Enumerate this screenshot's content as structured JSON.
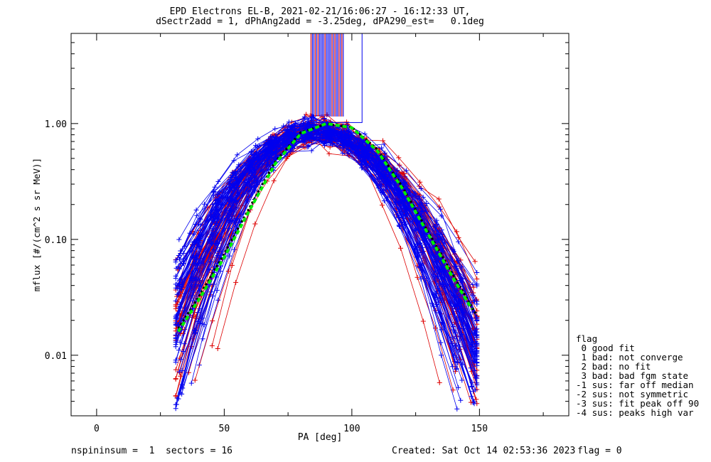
{
  "title_line1": "EPD Electrons EL-B, 2021-02-21/16:06:27 - 16:12:33 UT,",
  "title_line2": "dSectr2add = 1, dPhAng2add = -3.25deg, dPA290_est=   0.1deg",
  "footer": {
    "left": "nspininsum =  1  sectors = 16",
    "created": "Created: Sat Oct 14 02:53:36 2023",
    "flag": "flag = 0"
  },
  "flag_legend": {
    "title": "flag",
    "items": [
      " 0 good fit",
      " 1 bad: not converge",
      " 2 bad: no fit",
      " 3 bad: bad fgm state",
      "-1 sus: far off median",
      "-2 sus: not symmetric",
      "-3 sus: fit peak off 90",
      "-4 sus: peaks high var"
    ]
  },
  "colors": {
    "red": "#dd0000",
    "blue": "#0000ee",
    "fit_green": "#00ee00",
    "median_black": "#000000"
  },
  "chart_data": {
    "type": "line",
    "xlabel": "PA [deg]",
    "ylabel": "mflux [#/(cm^2 s sr MeV)]",
    "xlim": [
      -10,
      185
    ],
    "ylim": [
      0.003,
      6.0
    ],
    "yscale": "log",
    "x_ticks": [
      "0",
      "50",
      "100",
      "150"
    ],
    "y_ticks": [
      "0.01",
      "0.10",
      "1.00"
    ],
    "fit_curve": {
      "x": [
        32,
        40,
        50,
        60,
        70,
        80,
        90,
        100,
        110,
        120,
        130,
        140,
        147
      ],
      "y": [
        0.016,
        0.03,
        0.07,
        0.18,
        0.45,
        0.82,
        1.0,
        0.92,
        0.58,
        0.27,
        0.11,
        0.045,
        0.025
      ]
    },
    "median_curve": {
      "x": [
        32,
        40,
        50,
        60,
        70,
        80,
        90,
        100,
        110,
        120,
        130,
        140,
        149
      ],
      "y": [
        0.017,
        0.032,
        0.075,
        0.19,
        0.47,
        0.84,
        0.99,
        0.93,
        0.6,
        0.28,
        0.115,
        0.048,
        0.022
      ]
    },
    "top_bars": {
      "x_range": [
        84,
        97
      ],
      "box_x": [
        84,
        104
      ]
    }
  }
}
